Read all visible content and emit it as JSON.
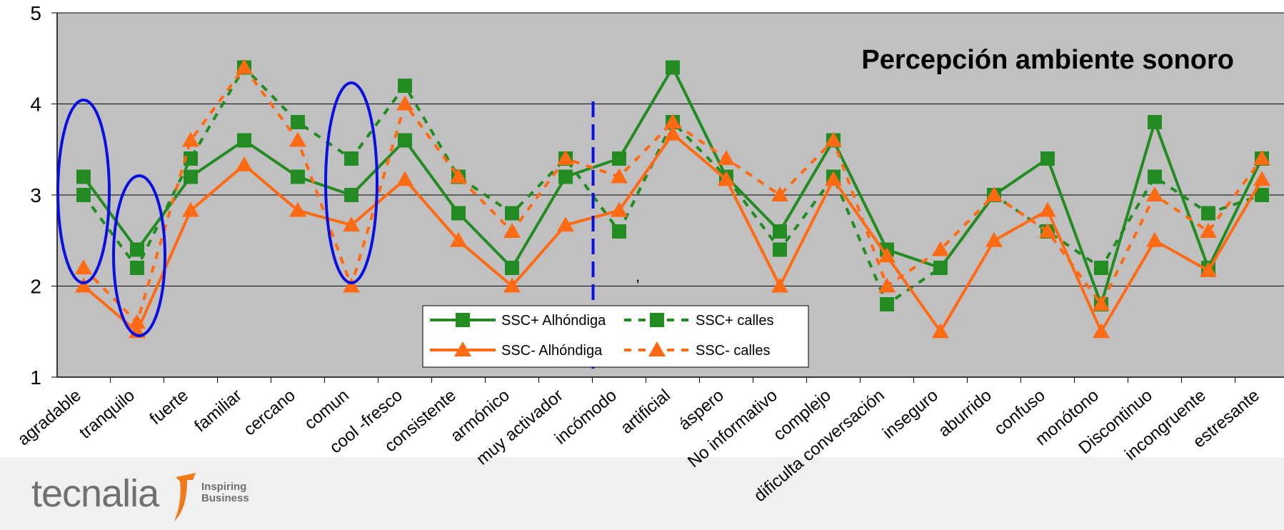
{
  "chart_data": {
    "type": "line",
    "title": "Percepción ambiente sonoro",
    "categories": [
      "agradable",
      "tranquilo",
      "fuerte",
      "familiar",
      "cercano",
      "comun",
      "cool -fresco",
      "consistente",
      "armónico",
      "muy activador",
      "incómodo",
      "artificial",
      "áspero",
      "No informativo",
      "complejo",
      "dificulta conversación",
      "inseguro",
      "aburrido",
      "confuso",
      "monótono",
      "Discontinuo",
      "incongruente",
      "estresante"
    ],
    "ylim": [
      1,
      5
    ],
    "yticks": [
      "1",
      "2",
      "3",
      "4",
      "5"
    ],
    "grid": true,
    "legend_position": "center-bottom",
    "series": [
      {
        "name": "SSC+ Alhóndiga",
        "color": "#228B22",
        "dash": "solid",
        "marker": "square",
        "values": [
          3.2,
          2.4,
          3.2,
          3.6,
          3.2,
          3.0,
          3.6,
          2.8,
          2.2,
          3.2,
          3.4,
          4.4,
          3.2,
          2.6,
          3.6,
          2.4,
          2.2,
          3.0,
          3.4,
          1.8,
          3.8,
          2.2,
          3.4
        ]
      },
      {
        "name": "SSC+ calles",
        "color": "#228B22",
        "dash": "dashed",
        "marker": "square",
        "values": [
          3.0,
          2.2,
          3.4,
          4.4,
          3.8,
          3.4,
          4.2,
          3.2,
          2.8,
          3.4,
          2.6,
          3.8,
          3.2,
          2.4,
          3.2,
          1.8,
          2.2,
          3.0,
          2.6,
          2.2,
          3.2,
          2.8,
          3.0
        ]
      },
      {
        "name": "SSC- Alhóndiga",
        "color": "#FF6A13",
        "dash": "solid",
        "marker": "triangle",
        "values": [
          2.0,
          1.5,
          2.83,
          3.33,
          2.83,
          2.67,
          3.17,
          2.5,
          2.0,
          2.67,
          2.83,
          3.67,
          3.17,
          2.0,
          3.17,
          2.33,
          1.5,
          2.5,
          2.83,
          1.5,
          2.5,
          2.17,
          3.17
        ]
      },
      {
        "name": "SSC- calles",
        "color": "#FF6A13",
        "dash": "dashed",
        "marker": "triangle",
        "values": [
          2.2,
          1.6,
          3.6,
          4.4,
          3.6,
          2.0,
          4.0,
          3.2,
          2.6,
          3.4,
          3.2,
          3.8,
          3.4,
          3.0,
          3.6,
          2.0,
          2.4,
          3.0,
          2.6,
          1.8,
          3.0,
          2.6,
          3.4
        ]
      }
    ],
    "annotations": [
      {
        "type": "ellipse",
        "around_category": "agradable",
        "color": "#0A10E0"
      },
      {
        "type": "ellipse",
        "around_category": "tranquilo",
        "color": "#0A10E0"
      },
      {
        "type": "ellipse",
        "around_category": "comun",
        "color": "#0A10E0"
      },
      {
        "type": "dashed-vline",
        "between": [
          "muy activador",
          "incómodo"
        ],
        "color": "#0A10E0"
      }
    ],
    "stray_mark": ","
  },
  "logo": {
    "word": "tecnalia",
    "tagline": "Inspiring Business"
  }
}
